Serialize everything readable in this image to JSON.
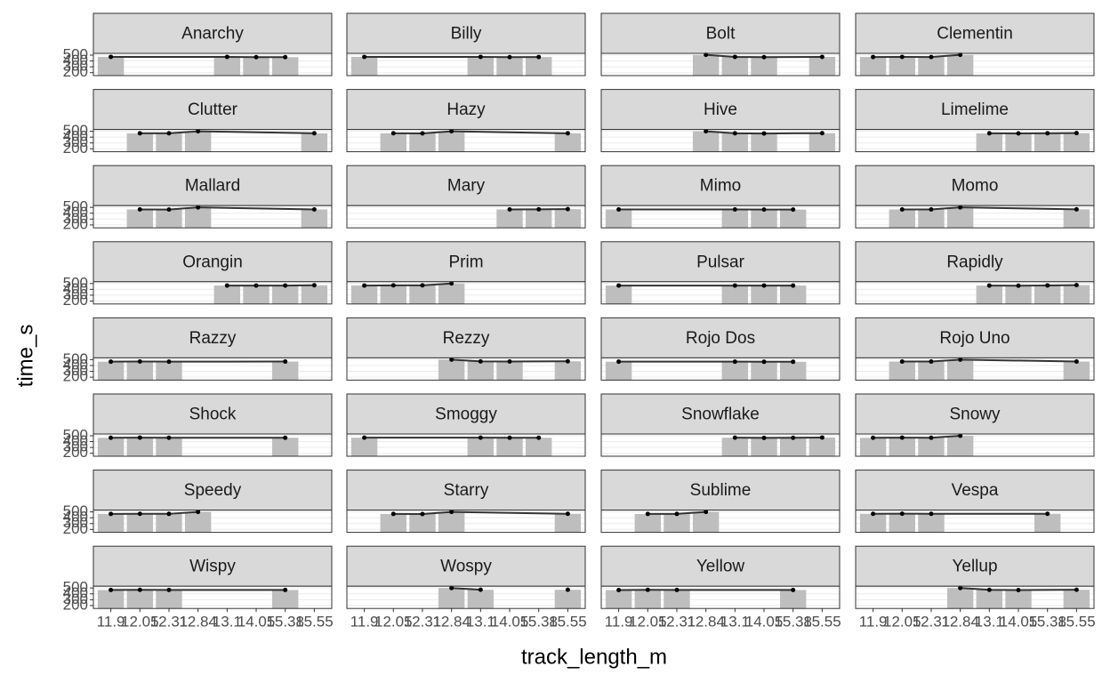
{
  "chart_data": {
    "type": "bar",
    "overlay": "line",
    "x_label": "track_length_m",
    "y_label": "time_s",
    "categories": [
      "11.9",
      "12.05",
      "12.31",
      "12.84",
      "13.1",
      "14.05",
      "15.38",
      "15.55"
    ],
    "ylim": [
      150,
      530
    ],
    "yticks": [
      500,
      400,
      300,
      200
    ],
    "bar_color": "#bebebe",
    "line_color": "#333333",
    "point_color": "#000000",
    "grid": true,
    "facets": [
      {
        "name": "Anarchy",
        "x": [
          "11.9",
          "13.1",
          "14.05",
          "15.38"
        ],
        "values": [
          470,
          470,
          465,
          465
        ]
      },
      {
        "name": "Billy",
        "x": [
          "11.9",
          "13.1",
          "14.05",
          "15.38"
        ],
        "values": [
          470,
          470,
          465,
          468
        ]
      },
      {
        "name": "Bolt",
        "x": [
          "12.84",
          "13.1",
          "14.05",
          "15.55"
        ],
        "values": [
          505,
          470,
          465,
          470
        ]
      },
      {
        "name": "Clementin",
        "x": [
          "11.9",
          "12.05",
          "12.31",
          "12.84"
        ],
        "values": [
          468,
          470,
          467,
          505
        ]
      },
      {
        "name": "Clutter",
        "x": [
          "12.05",
          "12.31",
          "12.84",
          "15.55"
        ],
        "values": [
          465,
          465,
          500,
          465
        ]
      },
      {
        "name": "Hazy",
        "x": [
          "12.05",
          "12.31",
          "12.84",
          "15.55"
        ],
        "values": [
          465,
          463,
          500,
          465
        ]
      },
      {
        "name": "Hive",
        "x": [
          "12.84",
          "13.1",
          "14.05",
          "15.55"
        ],
        "values": [
          500,
          465,
          462,
          467
        ]
      },
      {
        "name": "Limelime",
        "x": [
          "13.1",
          "14.05",
          "15.38",
          "15.55"
        ],
        "values": [
          465,
          463,
          465,
          468
        ]
      },
      {
        "name": "Mallard",
        "x": [
          "12.05",
          "12.31",
          "12.84",
          "15.55"
        ],
        "values": [
          465,
          463,
          500,
          465
        ]
      },
      {
        "name": "Mary",
        "x": [
          "14.05",
          "15.38",
          "15.55"
        ],
        "values": [
          465,
          467,
          470
        ]
      },
      {
        "name": "Mimo",
        "x": [
          "11.9",
          "13.1",
          "14.05",
          "15.38"
        ],
        "values": [
          465,
          465,
          463,
          463
        ]
      },
      {
        "name": "Momo",
        "x": [
          "12.05",
          "12.31",
          "12.84",
          "15.55"
        ],
        "values": [
          465,
          464,
          500,
          466
        ]
      },
      {
        "name": "Orangin",
        "x": [
          "13.1",
          "14.05",
          "15.38",
          "15.55"
        ],
        "values": [
          465,
          465,
          465,
          470
        ]
      },
      {
        "name": "Prim",
        "x": [
          "11.9",
          "12.05",
          "12.31",
          "12.84"
        ],
        "values": [
          465,
          468,
          468,
          500
        ]
      },
      {
        "name": "Pulsar",
        "x": [
          "11.9",
          "13.1",
          "14.05",
          "15.38"
        ],
        "values": [
          465,
          465,
          465,
          465
        ]
      },
      {
        "name": "Rapidly",
        "x": [
          "13.1",
          "14.05",
          "15.38",
          "15.55"
        ],
        "values": [
          465,
          463,
          467,
          472
        ]
      },
      {
        "name": "Razzy",
        "x": [
          "11.9",
          "12.05",
          "12.31",
          "15.38"
        ],
        "values": [
          465,
          468,
          465,
          467
        ]
      },
      {
        "name": "Rezzy",
        "x": [
          "12.84",
          "13.1",
          "14.05",
          "15.55"
        ],
        "values": [
          500,
          470,
          468,
          472
        ]
      },
      {
        "name": "Rojo Dos",
        "x": [
          "11.9",
          "13.1",
          "14.05",
          "15.38"
        ],
        "values": [
          465,
          465,
          463,
          463
        ]
      },
      {
        "name": "Rojo Uno",
        "x": [
          "12.05",
          "12.31",
          "12.84",
          "15.55"
        ],
        "values": [
          467,
          467,
          500,
          467
        ]
      },
      {
        "name": "Shock",
        "x": [
          "11.9",
          "12.05",
          "12.31",
          "15.38"
        ],
        "values": [
          465,
          468,
          466,
          466
        ]
      },
      {
        "name": "Smoggy",
        "x": [
          "11.9",
          "13.1",
          "14.05",
          "15.38"
        ],
        "values": [
          467,
          467,
          465,
          466
        ]
      },
      {
        "name": "Snowflake",
        "x": [
          "13.1",
          "14.05",
          "15.38",
          "15.55"
        ],
        "values": [
          467,
          463,
          466,
          470
        ]
      },
      {
        "name": "Snowy",
        "x": [
          "11.9",
          "12.05",
          "12.31",
          "12.84"
        ],
        "values": [
          465,
          468,
          465,
          500
        ]
      },
      {
        "name": "Speedy",
        "x": [
          "11.9",
          "12.05",
          "12.31",
          "12.84"
        ],
        "values": [
          465,
          467,
          466,
          500
        ]
      },
      {
        "name": "Starry",
        "x": [
          "12.05",
          "12.31",
          "12.84",
          "15.55"
        ],
        "values": [
          465,
          463,
          500,
          467
        ]
      },
      {
        "name": "Sublime",
        "x": [
          "12.05",
          "12.31",
          "12.84"
        ],
        "values": [
          465,
          465,
          500
        ]
      },
      {
        "name": "Vespa",
        "x": [
          "11.9",
          "12.05",
          "12.31",
          "15.38"
        ],
        "values": [
          467,
          469,
          467,
          467
        ]
      },
      {
        "name": "Wispy",
        "x": [
          "11.9",
          "12.05",
          "12.31",
          "15.38"
        ],
        "values": [
          466,
          468,
          466,
          466
        ]
      },
      {
        "name": "Wospy",
        "x": [
          "12.84",
          "13.1",
          "15.38",
          "15.55"
        ],
        "values": [
          500,
          470,
          null,
          470
        ]
      },
      {
        "name": "Yellow",
        "x": [
          "11.9",
          "12.05",
          "12.31",
          "15.38"
        ],
        "values": [
          465,
          468,
          466,
          466
        ]
      },
      {
        "name": "Yellup",
        "x": [
          "12.84",
          "13.1",
          "14.05",
          "15.55"
        ],
        "values": [
          500,
          468,
          465,
          470
        ]
      }
    ]
  }
}
